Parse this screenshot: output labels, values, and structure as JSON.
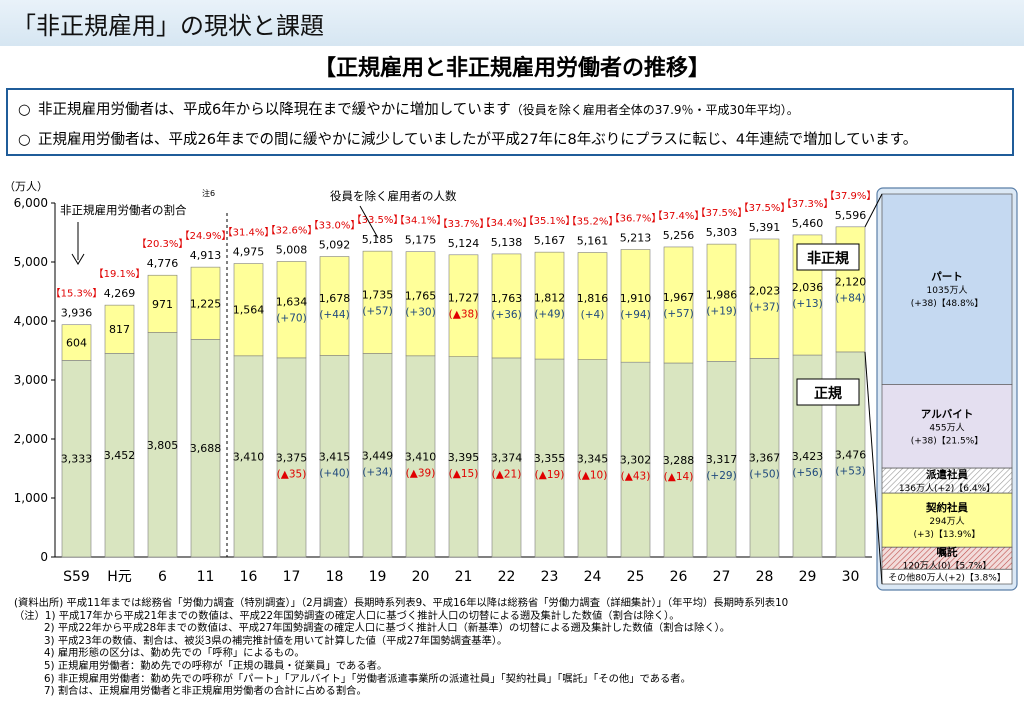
{
  "header": {
    "title": "「非正規雇用」の現状と課題",
    "subtitle": "【正規雇用と非正規雇用労働者の推移】"
  },
  "bullets": [
    {
      "mark": "○",
      "text": "非正規雇用労働者は、平成6年から以降現在まで緩やかに増加しています",
      "note": "（役員を除く雇用者全体の37.9％・平成30年平均）。"
    },
    {
      "mark": "○",
      "text": "正規雇用労働者は、平成26年までの間に緩やかに減少していましたが平成27年に8年ぶりにプラスに転じ、4年連続で増加しています。",
      "note": ""
    }
  ],
  "chart_data": {
    "type": "bar",
    "stacked": true,
    "unit_label": "（万人）",
    "ylim": [
      0,
      6000
    ],
    "yticks": [
      "0",
      "1,000",
      "2,000",
      "3,000",
      "4,000",
      "5,000",
      "6,000"
    ],
    "categories": [
      "S59",
      "H元",
      "6",
      "11",
      "16",
      "17",
      "18",
      "19",
      "20",
      "21",
      "22",
      "23",
      "24",
      "25",
      "26",
      "27",
      "28",
      "29",
      "30"
    ],
    "series": [
      {
        "name": "正規",
        "color": "#d9e5c0",
        "values": [
          3333,
          3452,
          3805,
          3688,
          3410,
          3375,
          3415,
          3449,
          3410,
          3395,
          3374,
          3355,
          3345,
          3302,
          3288,
          3317,
          3367,
          3423,
          3476
        ],
        "labels": [
          "3,333",
          "3,452",
          "3,805",
          "3,688",
          "3,410",
          "3,375",
          "3,415",
          "3,449",
          "3,410",
          "3,395",
          "3,374",
          "3,355",
          "3,345",
          "3,302",
          "3,288",
          "3,317",
          "3,367",
          "3,423",
          "3,476"
        ],
        "changes": [
          "",
          "",
          "",
          "",
          "",
          "(▲35)",
          "(+40)",
          "(+34)",
          "(▲39)",
          "(▲15)",
          "(▲21)",
          "(▲19)",
          "(▲10)",
          "(▲43)",
          "(▲14)",
          "(+29)",
          "(+50)",
          "(+56)",
          "(+53)"
        ]
      },
      {
        "name": "非正規",
        "color": "#ffff99",
        "values": [
          604,
          817,
          971,
          1225,
          1564,
          1634,
          1678,
          1735,
          1765,
          1727,
          1763,
          1812,
          1816,
          1910,
          1967,
          1986,
          2023,
          2036,
          2120
        ],
        "labels": [
          "604",
          "817",
          "971",
          "1,225",
          "1,564",
          "1,634",
          "1,678",
          "1,735",
          "1,765",
          "1,727",
          "1,763",
          "1,812",
          "1,816",
          "1,910",
          "1,967",
          "1,986",
          "2,023",
          "2,036",
          "2,120"
        ],
        "changes": [
          "",
          "",
          "",
          "",
          "",
          "(+70)",
          "(+44)",
          "(+57)",
          "(+30)",
          "(▲38)",
          "(+36)",
          "(+49)",
          "(+4)",
          "(+94)",
          "(+57)",
          "(+19)",
          "(+37)",
          "(+13)",
          "(+84)"
        ]
      }
    ],
    "totals": [
      "3,936",
      "4,269",
      "4,776",
      "4,913",
      "4,975",
      "5,008",
      "5,092",
      "5,185",
      "5,175",
      "5,124",
      "5,138",
      "5,167",
      "5,161",
      "5,213",
      "5,256",
      "5,303",
      "5,391",
      "5,460",
      "5,596"
    ],
    "ratios": [
      "【15.3%】",
      "【19.1%】",
      "【20.3%】",
      "【24.9%】",
      "【31.4%】",
      "【32.6%】",
      "【33.0%】",
      "【33.5%】",
      "【34.1%】",
      "【33.7%】",
      "【34.4%】",
      "【35.1%】",
      "【35.2%】",
      "【36.7%】",
      "【37.4%】",
      "【37.5%】",
      "【37.5%】",
      "【37.3%】",
      "【37.9%】"
    ],
    "annotations": {
      "ratio_note": "非正規雇用労働者の割合",
      "total_note": "役員を除く雇用者の人数",
      "footnote_mark": "注6",
      "label_nonregular": "非正規",
      "label_regular": "正規"
    },
    "breakdown": {
      "total_values": [
        "1035",
        "455",
        "136",
        "294",
        "120",
        "80"
      ],
      "segments": [
        {
          "l1": "パート",
          "l2": "1035万人",
          "l3": "(+38)【48.8%】",
          "color": "#c5d9f1",
          "value": 1035
        },
        {
          "l1": "アルバイト",
          "l2": "455万人",
          "l3": "(+38)【21.5%】",
          "color": "#e4dff0",
          "value": 455
        },
        {
          "l1": "派遣社員",
          "l2": "136万人(+2)【6.4%】",
          "l3": "",
          "color": "#ffffff",
          "value": 136
        },
        {
          "l1": "契約社員",
          "l2": "294万人",
          "l3": "(+3)【13.9%】",
          "color": "#ffff99",
          "value": 294
        },
        {
          "l1": "嘱託",
          "l2": "120万人(0)【5.7%】",
          "l3": "",
          "color": "#e6b9b8",
          "value": 120
        },
        {
          "l1": "その他80万人(+2)【3.8%】",
          "l2": "",
          "l3": "",
          "color": "#ffffff",
          "value": 80
        }
      ]
    }
  },
  "notes": [
    "(資料出所) 平成11年までは総務省「労働力調査（特別調査）」（2月調査）長期時系列表9、平成16年以降は総務省「労働力調査（詳細集計）」（年平均）長期時系列表10",
    "（注）1) 平成17年から平成21年までの数値は、平成22年国勢調査の確定人口に基づく推計人口の切替による遡及集計した数値（割合は除く）。",
    "2) 平成22年から平成28年までの数値は、平成27年国勢調査の確定人口に基づく推計人口（新基準）の切替による遡及集計した数値（割合は除く）。",
    "3) 平成23年の数値、割合は、被災3県の補完推計値を用いて計算した値（平成27年国勢調査基準）。",
    "4) 雇用形態の区分は、勤め先での「呼称」によるもの。",
    "5) 正規雇用労働者：勤め先での呼称が「正規の職員・従業員」である者。",
    "6) 非正規雇用労働者：勤め先での呼称が「パート」「アルバイト」「労働者派遣事業所の派遣社員」「契約社員」「嘱託」「その他」である者。",
    "7) 割合は、正規雇用労働者と非正規雇用労働者の合計に占める割合。"
  ]
}
